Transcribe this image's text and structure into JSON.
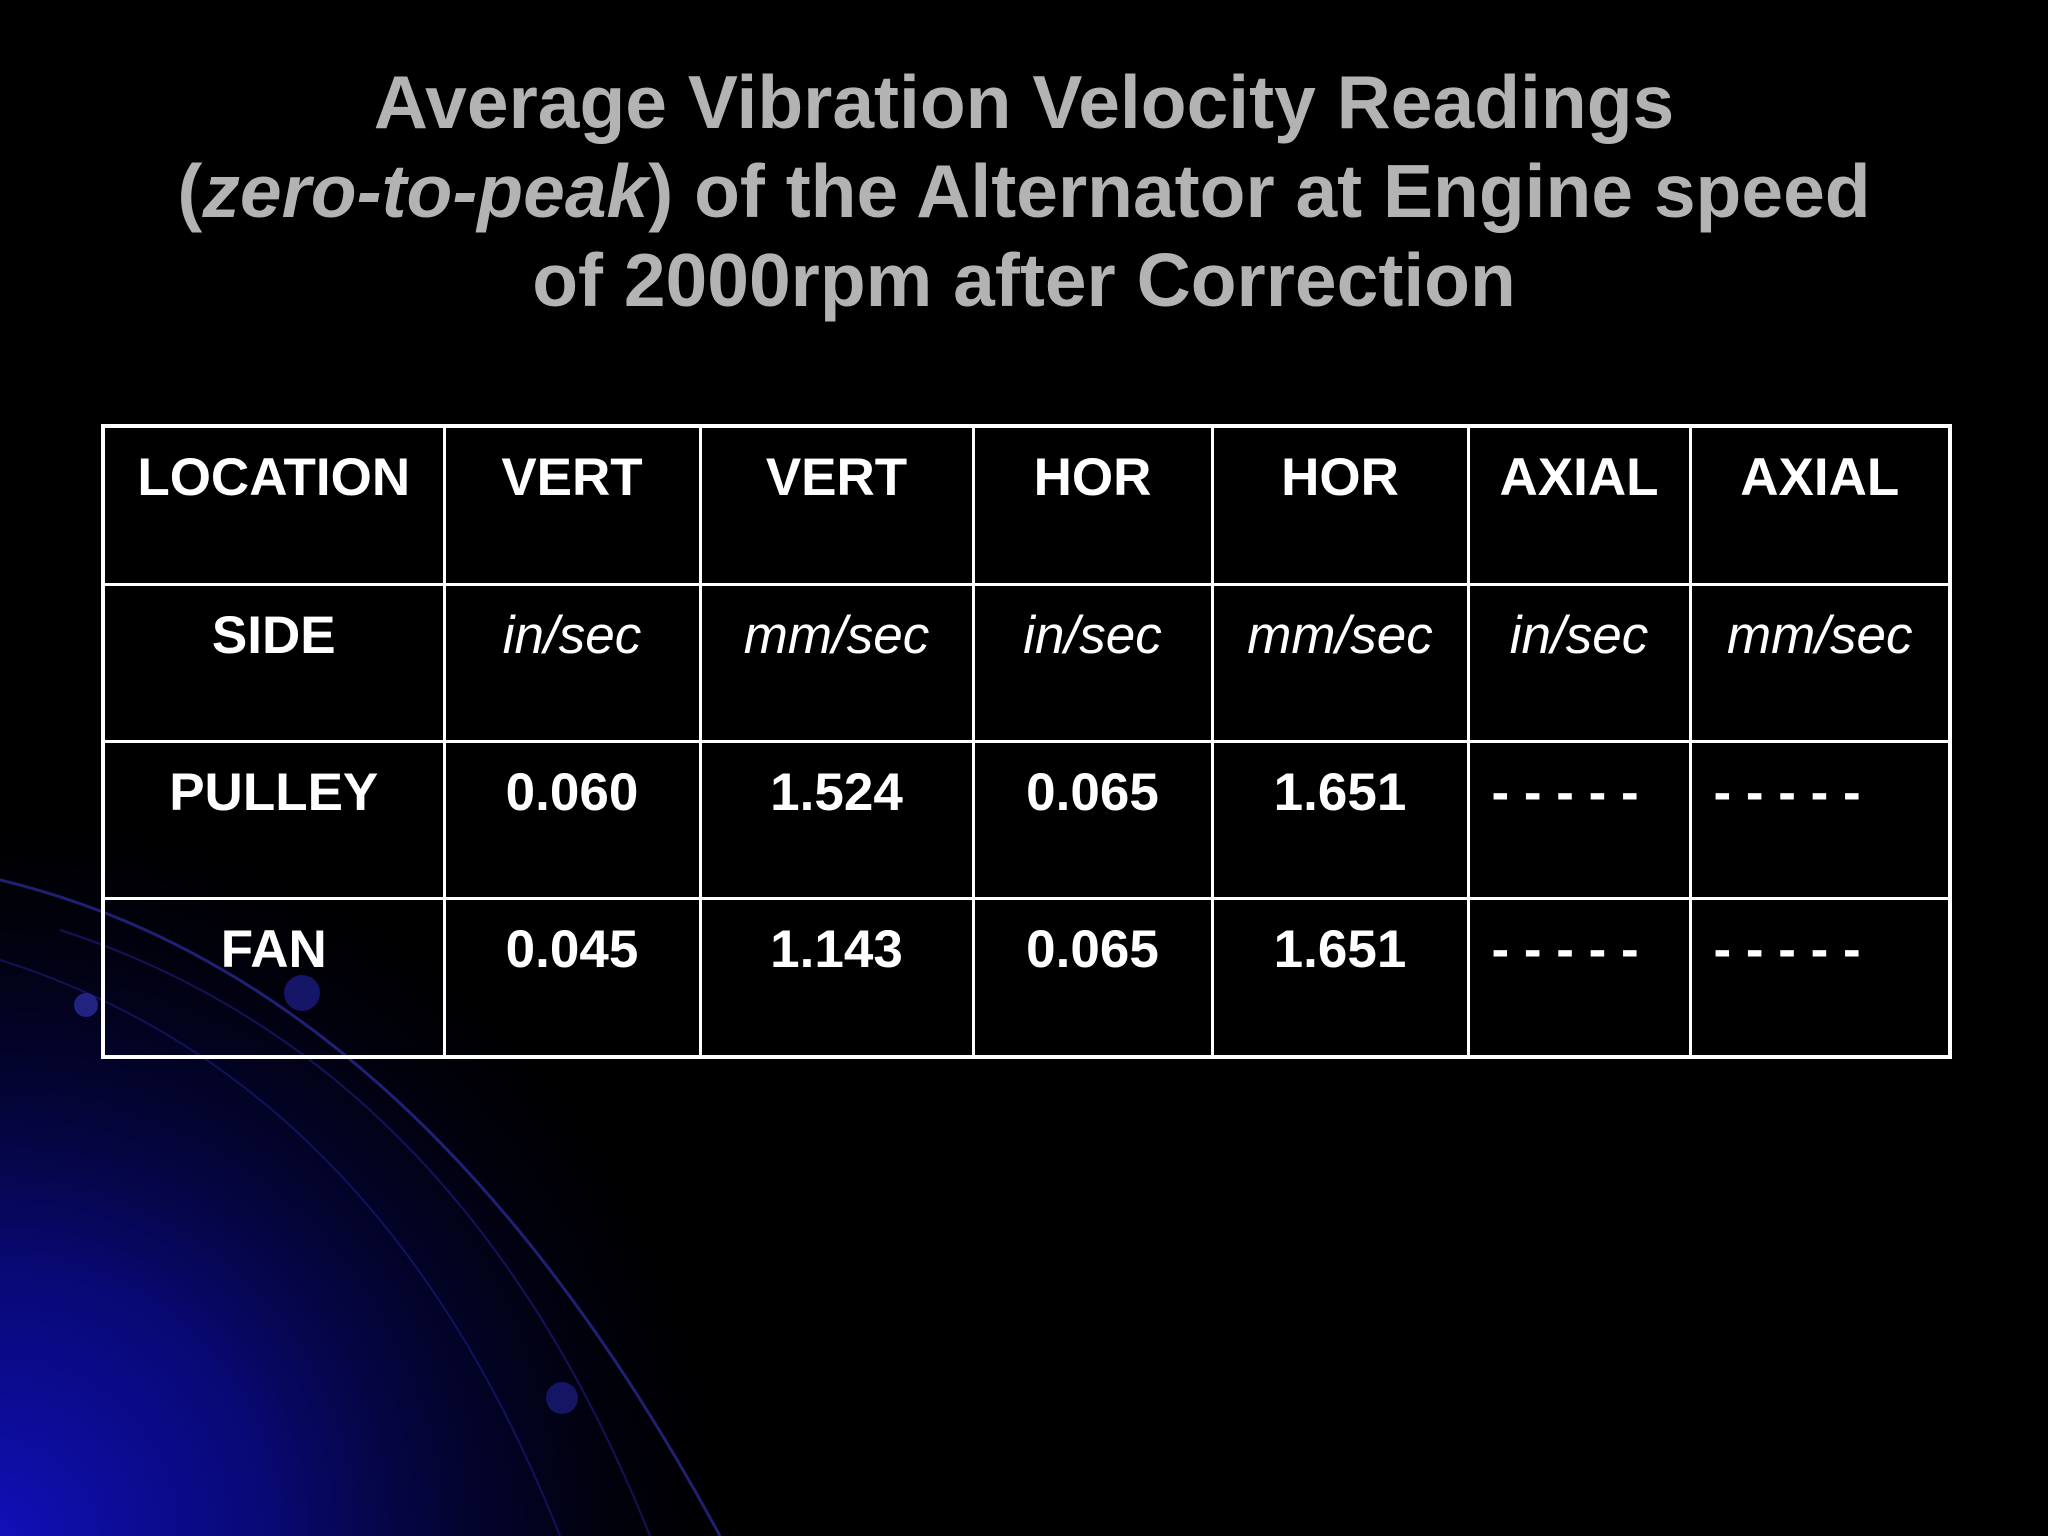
{
  "slide": {
    "title_line1": "Average Vibration Velocity Readings",
    "title_line2_open": "(",
    "title_line2_italic": "zero-to-peak",
    "title_line2_rest": ") of the Alternator at Engine speed",
    "title_line3": "of 2000rpm after Correction"
  },
  "table": {
    "header_row": [
      "LOCATION",
      "VERT",
      "VERT",
      "HOR",
      "HOR",
      "AXIAL",
      "AXIAL"
    ],
    "units_row": [
      "SIDE",
      "in/sec",
      "mm/sec",
      "in/sec",
      "mm/sec",
      "in/sec",
      "mm/sec"
    ],
    "rows": [
      [
        "PULLEY",
        "0.060",
        "1.524",
        "0.065",
        "1.651",
        "- - - - -",
        "- - - - -"
      ],
      [
        "FAN",
        "0.045",
        "1.143",
        "0.065",
        "1.651",
        "- - - - -",
        "- - - - -"
      ]
    ]
  },
  "colors": {
    "background": "#000000",
    "title_text": "#b3b3b3",
    "table_text": "#ffffff",
    "table_border": "#ffffff",
    "decor_blue": "#1a1aa8"
  }
}
